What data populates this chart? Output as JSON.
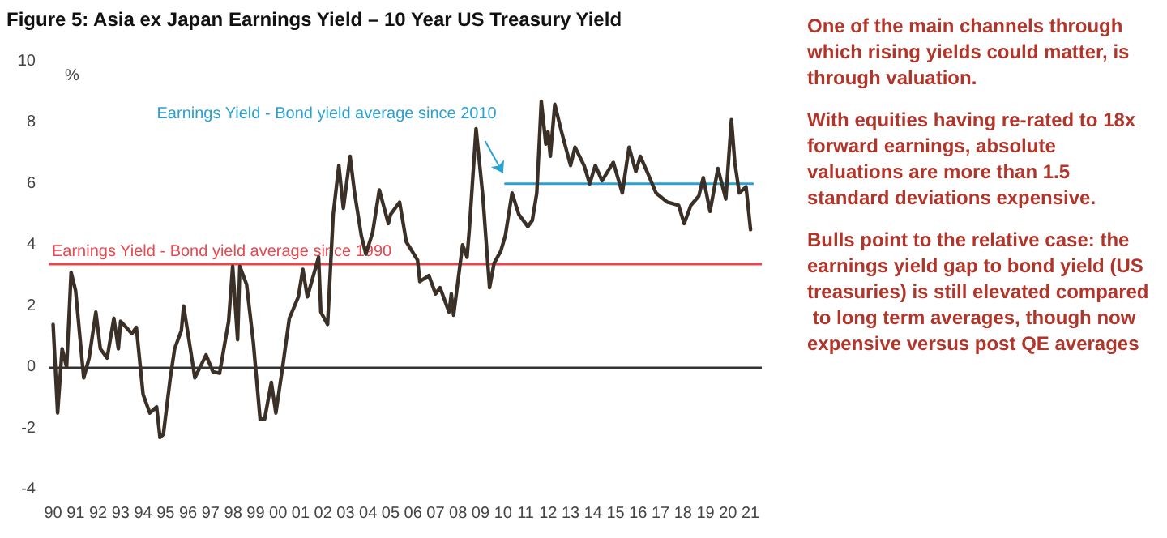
{
  "chart_data": {
    "type": "line",
    "title": "Figure 5: Asia ex Japan Earnings Yield – 10 Year US Treasury Yield",
    "ylabel": "%",
    "x": [
      1990.0,
      1990.2,
      1990.4,
      1990.6,
      1990.8,
      1991.0,
      1991.36,
      1991.6,
      1991.9,
      1992.1,
      1992.4,
      1992.7,
      1992.9,
      1993.0,
      1993.5,
      1993.7,
      1994.0,
      1994.3,
      1994.6,
      1994.75,
      1994.9,
      1995.2,
      1995.4,
      1995.7,
      1995.8,
      1996.1,
      1996.3,
      1996.6,
      1996.8,
      1997.1,
      1997.4,
      1997.8,
      1997.98,
      1998.2,
      1998.3,
      1998.6,
      1998.9,
      1999.2,
      1999.4,
      1999.7,
      1999.9,
      2000.2,
      2000.5,
      2000.9,
      2001.1,
      2001.3,
      2001.8,
      2001.9,
      2002.2,
      2002.45,
      2002.7,
      2002.9,
      2003.2,
      2003.4,
      2003.7,
      2003.9,
      2004.2,
      2004.5,
      2004.9,
      2005.0,
      2005.4,
      2005.7,
      2006.2,
      2006.3,
      2006.7,
      2007.0,
      2007.2,
      2007.6,
      2007.7,
      2007.8,
      2008.2,
      2008.4,
      2008.5,
      2008.8,
      2009.1,
      2009.4,
      2009.6,
      2009.9,
      2010.1,
      2010.4,
      2010.7,
      2011.1,
      2011.3,
      2011.5,
      2011.7,
      2011.9,
      2012.0,
      2012.1,
      2012.3,
      2012.6,
      2013.0,
      2013.2,
      2013.6,
      2013.85,
      2014.1,
      2014.4,
      2014.9,
      2015.3,
      2015.6,
      2015.9,
      2016.1,
      2016.4,
      2016.8,
      2017.3,
      2017.8,
      2018.05,
      2018.35,
      2018.7,
      2018.9,
      2019.2,
      2019.55,
      2019.9,
      2020.15,
      2020.3,
      2020.5,
      2020.8,
      2021.0
    ],
    "series": [
      {
        "color": "#3b3028",
        "values": [
          1.4,
          -1.5,
          0.6,
          0.0,
          3.1,
          2.5,
          -0.35,
          0.3,
          1.8,
          0.6,
          0.3,
          1.6,
          0.6,
          1.5,
          1.1,
          1.3,
          -0.9,
          -1.5,
          -1.3,
          -2.3,
          -2.2,
          -0.4,
          0.6,
          1.2,
          2.0,
          0.6,
          -0.35,
          0.1,
          0.4,
          -0.15,
          -0.2,
          1.5,
          3.3,
          0.9,
          3.3,
          2.7,
          0.8,
          -1.7,
          -1.7,
          -0.5,
          -1.5,
          0.0,
          1.6,
          2.3,
          3.2,
          2.3,
          3.6,
          1.8,
          1.4,
          5.0,
          6.6,
          5.2,
          6.9,
          5.7,
          4.3,
          3.7,
          4.4,
          5.8,
          4.7,
          5.0,
          5.4,
          4.1,
          3.5,
          2.8,
          3.0,
          2.4,
          2.6,
          1.8,
          2.4,
          1.7,
          4.0,
          3.6,
          4.5,
          7.8,
          5.6,
          2.6,
          3.4,
          3.8,
          4.3,
          5.7,
          5.0,
          4.6,
          4.8,
          5.7,
          8.7,
          7.3,
          7.7,
          6.9,
          8.6,
          7.7,
          6.6,
          7.2,
          6.6,
          6.0,
          6.6,
          6.1,
          6.7,
          5.7,
          7.2,
          6.4,
          6.9,
          6.4,
          5.7,
          5.4,
          5.3,
          4.7,
          5.3,
          5.6,
          6.2,
          5.1,
          6.5,
          5.5,
          8.1,
          6.7,
          5.7,
          5.9,
          4.5
        ]
      },
      {
        "type": "line",
        "color": "#2aa1d0",
        "x": [
          2010.1,
          2021.1
        ],
        "values": [
          6.0,
          6.0
        ]
      }
    ],
    "ref_lines": [
      {
        "axis": "y",
        "value": 3.4,
        "label": "Earnings Yield - Bond yield average since 1990",
        "color": "#e8474f"
      },
      {
        "axis": "y",
        "value": 0,
        "color": "#333333"
      }
    ],
    "annotations": [
      {
        "text": "Earnings Yield - Bond yield average since 2010",
        "x": 2010.1,
        "y": 6.0
      },
      "One of the main channels through which rising yields could matter, is through valuation.",
      "With equities having re-rated to 18x forward earnings, absolute valuations are more than 1.5 standard deviations expensive.",
      "Bulls point to the relative case: the earnings yield gap to bond yield (US treasuries) is still elevated compared to long term averages, though now expensive versus post QE averages"
    ],
    "xlim": [
      1989.8,
      2021.5
    ],
    "xticks": [
      {
        "value": 1990,
        "label": "90"
      },
      {
        "value": 1991,
        "label": "91"
      },
      {
        "value": 1992,
        "label": "92"
      },
      {
        "value": 1993,
        "label": "93"
      },
      {
        "value": 1994,
        "label": "94"
      },
      {
        "value": 1995,
        "label": "95"
      },
      {
        "value": 1996,
        "label": "96"
      },
      {
        "value": 1997,
        "label": "97"
      },
      {
        "value": 1998,
        "label": "98"
      },
      {
        "value": 1999,
        "label": "99"
      },
      {
        "value": 2000,
        "label": "00"
      },
      {
        "value": 2001,
        "label": "01"
      },
      {
        "value": 2002,
        "label": "02"
      },
      {
        "value": 2003,
        "label": "03"
      },
      {
        "value": 2004,
        "label": "04"
      },
      {
        "value": 2005,
        "label": "05"
      },
      {
        "value": 2006,
        "label": "06"
      },
      {
        "value": 2007,
        "label": "07"
      },
      {
        "value": 2008,
        "label": "08"
      },
      {
        "value": 2009,
        "label": "09"
      },
      {
        "value": 2010,
        "label": "10"
      },
      {
        "value": 2011,
        "label": "11"
      },
      {
        "value": 2012,
        "label": "12"
      },
      {
        "value": 2013,
        "label": "13"
      },
      {
        "value": 2014,
        "label": "14"
      },
      {
        "value": 2015,
        "label": "15"
      },
      {
        "value": 2016,
        "label": "16"
      },
      {
        "value": 2017,
        "label": "17"
      },
      {
        "value": 2018,
        "label": "18"
      },
      {
        "value": 2019,
        "label": "19"
      },
      {
        "value": 2020,
        "label": "20"
      },
      {
        "value": 2021,
        "label": "21"
      }
    ],
    "ylim": [
      -4,
      10
    ],
    "yticks": [
      -4,
      -2,
      0,
      2,
      4,
      6,
      8,
      10
    ],
    "grid": false,
    "marker": "none",
    "line_style": "solid"
  }
}
